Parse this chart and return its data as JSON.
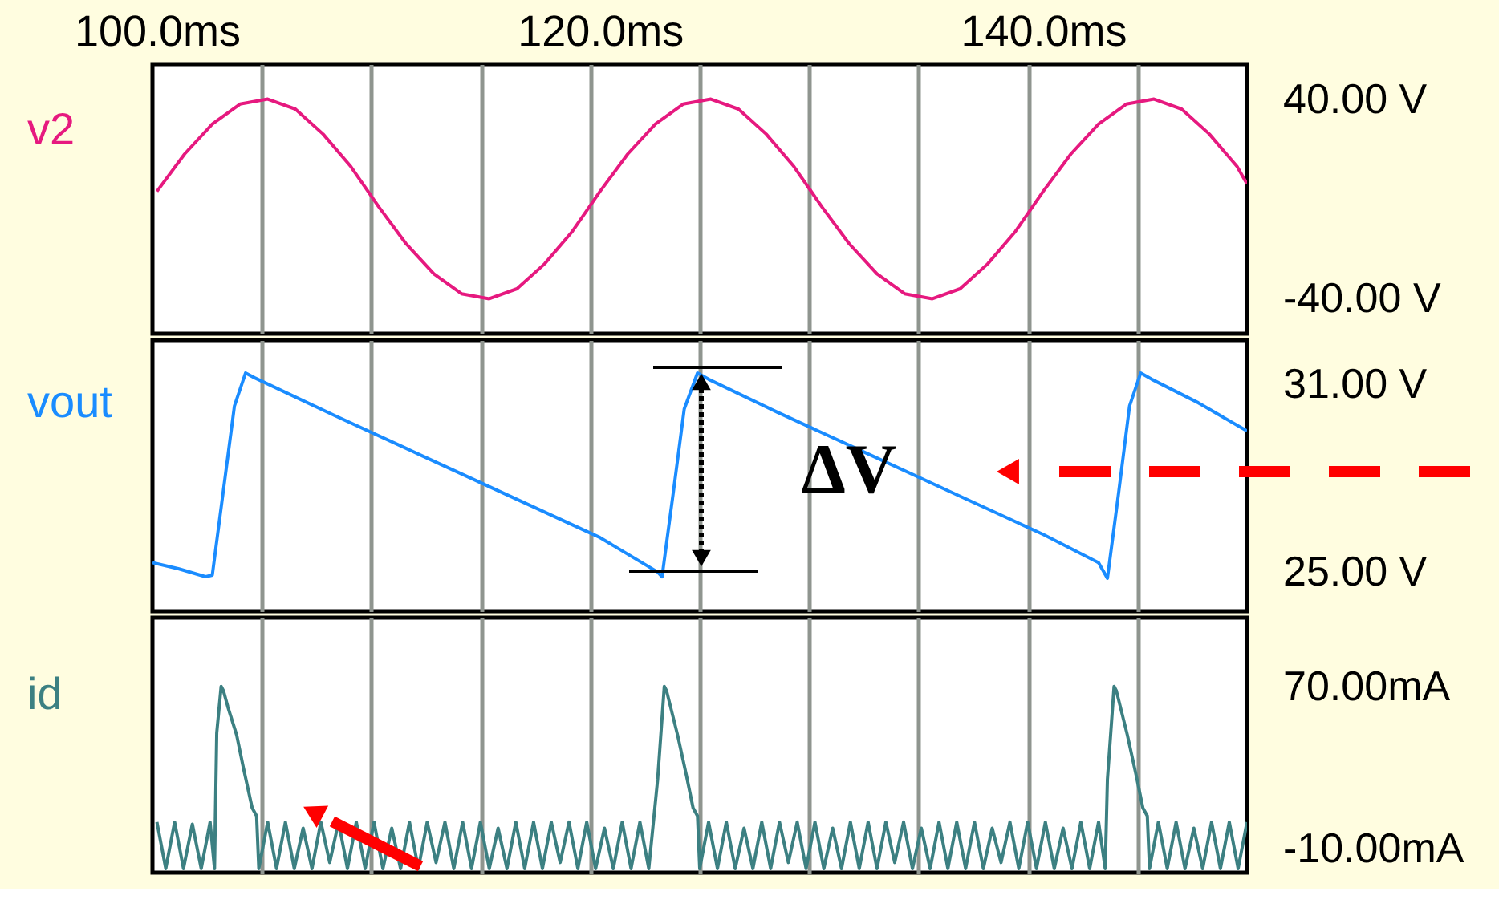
{
  "chart_data": [
    {
      "type": "line",
      "xlim": [
        99.8,
        149.2
      ],
      "ylim": [
        -54,
        54
      ],
      "grid": "x",
      "xticks": [
        {
          "value": 100,
          "label": "100.0ms"
        },
        {
          "value": 104.74,
          "label": null
        },
        {
          "value": 109.68,
          "label": null
        },
        {
          "value": 114.62,
          "label": null
        },
        {
          "value": 119.56,
          "label": null
        },
        {
          "value": 120,
          "label": "120.0ms"
        },
        {
          "value": 124.5,
          "label": null
        },
        {
          "value": 129.44,
          "label": null
        },
        {
          "value": 134.38,
          "label": null
        },
        {
          "value": 139.32,
          "label": null
        },
        {
          "value": 140,
          "label": "140.0ms"
        },
        {
          "value": 144.26,
          "label": null
        }
      ],
      "yticks": [
        {
          "value": 40,
          "label": "40.00 V"
        },
        {
          "value": -40,
          "label": "-40.00 V"
        }
      ],
      "series": [
        {
          "name": "v2",
          "color": "#e6197f",
          "x": [
            100,
            101.25,
            102.5,
            103.75,
            105,
            106.25,
            107.5,
            108.75,
            110,
            111.25,
            112.5,
            113.75,
            115,
            116.25,
            117.5,
            118.75,
            120,
            121.25,
            122.5,
            123.75,
            125,
            126.25,
            127.5,
            128.75,
            130,
            131.25,
            132.5,
            133.75,
            135,
            136.25,
            137.5,
            138.75,
            140,
            141.25,
            142.5,
            143.75,
            145,
            146.25,
            147.5,
            148.75,
            149.2
          ],
          "values": [
            3,
            18,
            30,
            38,
            40,
            36,
            26,
            13,
            -3,
            -18,
            -30,
            -38,
            -40,
            -36,
            -26,
            -13,
            3,
            18,
            30,
            38,
            40,
            36,
            26,
            13,
            -3,
            -18,
            -30,
            -38,
            -40,
            -36,
            -26,
            -13,
            3,
            18,
            30,
            38,
            40,
            36,
            26,
            13,
            6
          ]
        }
      ]
    },
    {
      "type": "line",
      "xlim": [
        99.8,
        149.2
      ],
      "ylim": [
        23.75,
        32.4
      ],
      "grid": "x",
      "tick_labels": "y",
      "xticks": [
        {
          "value": 104.74,
          "label": null
        },
        {
          "value": 109.68,
          "label": null
        },
        {
          "value": 114.62,
          "label": null
        },
        {
          "value": 119.56,
          "label": null
        },
        {
          "value": 124.5,
          "label": null
        },
        {
          "value": 129.44,
          "label": null
        },
        {
          "value": 134.38,
          "label": null
        },
        {
          "value": 139.32,
          "label": null
        },
        {
          "value": 144.26,
          "label": null
        }
      ],
      "yticks": [
        {
          "value": 31,
          "label": "31.00 V"
        },
        {
          "value": 25,
          "label": "25.00 V"
        }
      ],
      "annotations": [
        "ΔV"
      ],
      "series": [
        {
          "name": "vout",
          "color": "#1a8cff",
          "x": [
            99.8,
            101,
            102.2,
            102.5,
            103,
            103.5,
            104,
            104.4,
            108,
            112,
            116,
            120,
            122.6,
            122.8,
            123.3,
            123.8,
            124.4,
            124.9,
            128,
            132,
            136,
            140,
            142.5,
            142.9,
            143.4,
            143.9,
            144.4,
            144.9,
            147,
            149.2
          ],
          "values": [
            25.3,
            25.1,
            24.85,
            24.9,
            27.6,
            30.3,
            31.35,
            31.2,
            30.0,
            28.7,
            27.4,
            26.1,
            25.0,
            24.85,
            27.5,
            30.2,
            31.35,
            31.15,
            30.1,
            28.8,
            27.5,
            26.2,
            25.3,
            24.8,
            27.5,
            30.3,
            31.35,
            31.15,
            30.4,
            29.5
          ]
        }
      ]
    },
    {
      "type": "line",
      "xlim": [
        99.8,
        149.2
      ],
      "ylim": [
        -22,
        104
      ],
      "grid": "x",
      "tick_labels": "y",
      "xticks": [
        {
          "value": 104.74,
          "label": null
        },
        {
          "value": 109.68,
          "label": null
        },
        {
          "value": 114.62,
          "label": null
        },
        {
          "value": 119.56,
          "label": null
        },
        {
          "value": 124.5,
          "label": null
        },
        {
          "value": 129.44,
          "label": null
        },
        {
          "value": 134.38,
          "label": null
        },
        {
          "value": 139.32,
          "label": null
        },
        {
          "value": 144.26,
          "label": null
        }
      ],
      "yticks": [
        {
          "value": 70,
          "label": "70.00mA"
        },
        {
          "value": -10,
          "label": "-10.00mA"
        }
      ],
      "series": [
        {
          "name": "id",
          "color": "#3c8082",
          "x": [
            100.0,
            100.4,
            100.8,
            101.2,
            101.6,
            102.0,
            102.4,
            102.6,
            102.7,
            102.9,
            103.0,
            103.2,
            103.6,
            103.9,
            104.3,
            104.5,
            104.6,
            105.0,
            105.4,
            105.8,
            106.2,
            106.6,
            107.0,
            107.4,
            107.8,
            108.2,
            108.6,
            109.0,
            109.4,
            109.8,
            110.2,
            110.6,
            111.0,
            111.4,
            111.8,
            112.2,
            112.6,
            113.0,
            113.4,
            113.8,
            114.2,
            114.6,
            115.0,
            115.4,
            115.8,
            116.2,
            116.6,
            117.0,
            117.4,
            117.8,
            118.2,
            118.6,
            119.0,
            119.4,
            119.8,
            120.2,
            120.6,
            121.0,
            121.4,
            121.8,
            122.2,
            122.6,
            122.9,
            123.0,
            123.5,
            123.9,
            124.2,
            124.4,
            124.5,
            124.9,
            125.3,
            125.7,
            126.1,
            126.5,
            126.9,
            127.3,
            127.7,
            128.1,
            128.5,
            128.9,
            129.3,
            129.7,
            130.1,
            130.5,
            130.9,
            131.3,
            131.7,
            132.1,
            132.5,
            132.9,
            133.3,
            133.7,
            134.1,
            134.5,
            134.9,
            135.3,
            135.7,
            136.1,
            136.5,
            136.9,
            137.3,
            137.7,
            138.1,
            138.5,
            138.9,
            139.3,
            139.7,
            140.1,
            140.5,
            140.9,
            141.3,
            141.7,
            142.1,
            142.5,
            142.8,
            142.9,
            143.2,
            143.3,
            143.8,
            144.2,
            144.5,
            144.7,
            144.8,
            145.2,
            145.6,
            146.0,
            146.4,
            146.8,
            147.2,
            147.6,
            148.0,
            148.4,
            148.8,
            149.2
          ],
          "values": [
            3,
            -20,
            3,
            -20,
            2,
            -20,
            3,
            -20,
            47,
            70,
            68,
            60,
            46,
            30,
            10,
            6,
            -20,
            3,
            -20,
            3,
            -20,
            0,
            -20,
            3,
            -17,
            3,
            -20,
            3,
            -20,
            3,
            -20,
            0,
            -20,
            3,
            -20,
            3,
            -17,
            3,
            -20,
            3,
            -20,
            3,
            -20,
            0,
            -20,
            3,
            -20,
            3,
            -20,
            3,
            -17,
            3,
            -20,
            3,
            -20,
            0,
            -20,
            3,
            -20,
            3,
            -20,
            24,
            70,
            68,
            46,
            26,
            10,
            6,
            -20,
            3,
            -20,
            3,
            -20,
            0,
            -20,
            3,
            -20,
            3,
            -17,
            3,
            -20,
            3,
            -20,
            0,
            -20,
            3,
            -20,
            3,
            -20,
            3,
            -17,
            3,
            -20,
            0,
            -20,
            3,
            -20,
            3,
            -20,
            3,
            -20,
            0,
            -17,
            3,
            -20,
            3,
            -20,
            3,
            -20,
            0,
            -20,
            3,
            -20,
            3,
            -20,
            24,
            70,
            68,
            46,
            26,
            10,
            6,
            -20,
            3,
            -20,
            3,
            -20,
            0,
            -20,
            3,
            -20,
            3,
            -20,
            3
          ]
        }
      ]
    }
  ]
}
